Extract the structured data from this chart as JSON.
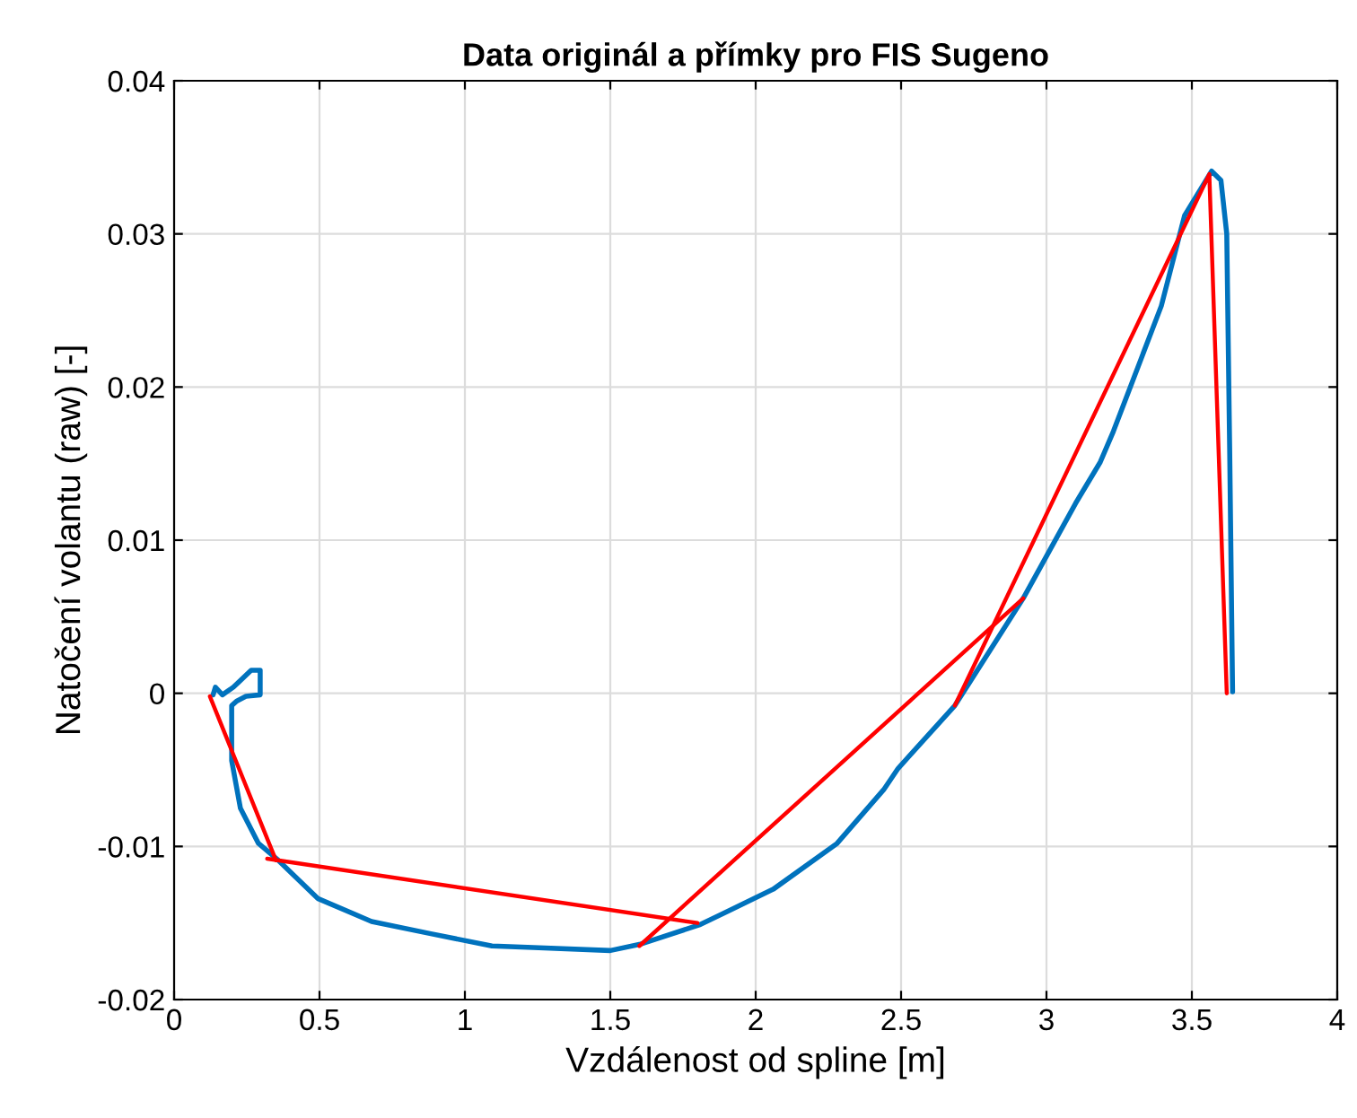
{
  "chart_data": {
    "type": "line",
    "title": "Data originál a přímky pro FIS Sugeno",
    "xlabel": "Vzdálenost od spline [m]",
    "ylabel": "Natočení volantu (raw) [-]",
    "xlim": [
      0,
      4
    ],
    "xticks": [
      0,
      0.5,
      1,
      1.5,
      2,
      2.5,
      3,
      3.5,
      4
    ],
    "ylim": [
      -0.02,
      0.04
    ],
    "yticks": [
      -0.02,
      -0.01,
      0,
      0.01,
      0.02,
      0.03,
      0.04
    ],
    "grid": true,
    "line_style": "solid",
    "series": [
      {
        "color": "#0072bd",
        "x": [
          0.134,
          0.142,
          0.166,
          0.204,
          0.265,
          0.296,
          0.296,
          0.247,
          0.216,
          0.198,
          0.198,
          0.228,
          0.29,
          0.358,
          0.494,
          0.679,
          0.883,
          1.093,
          1.235,
          1.5,
          1.6,
          1.81,
          2.06,
          2.28,
          2.44,
          2.49,
          2.685,
          2.92,
          3.1,
          3.185,
          3.23,
          3.395,
          3.475,
          3.568,
          3.6,
          3.62,
          3.63,
          3.64
        ],
        "values": [
          -0.0001,
          0.0004,
          -0.0001,
          0.0004,
          0.0015,
          0.0015,
          -0.0001,
          -0.0002,
          -0.0005,
          -0.0008,
          -0.0044,
          -0.0075,
          -0.0098,
          -0.0109,
          -0.0134,
          -0.0149,
          -0.0157,
          -0.0165,
          -0.0166,
          -0.0168,
          -0.0164,
          -0.0151,
          -0.0128,
          -0.0098,
          -0.0063,
          -0.0049,
          -0.0008,
          0.0062,
          0.0124,
          0.0151,
          0.0171,
          0.0253,
          0.0312,
          0.0341,
          0.0335,
          0.03,
          0.016,
          0.0001
        ]
      },
      {
        "color": "#ff0000",
        "x": [
          0.123,
          0.35
        ],
        "values": [
          -0.0002,
          -0.0109
        ]
      },
      {
        "color": "#ff0000",
        "x": [
          0.32,
          1.8
        ],
        "values": [
          -0.0108,
          -0.015
        ]
      },
      {
        "color": "#ff0000",
        "x": [
          1.6,
          2.92
        ],
        "values": [
          -0.0165,
          0.0062
        ]
      },
      {
        "color": "#ff0000",
        "x": [
          2.685,
          3.56,
          3.62
        ],
        "values": [
          -0.0008,
          0.0339,
          0.0
        ]
      }
    ]
  }
}
